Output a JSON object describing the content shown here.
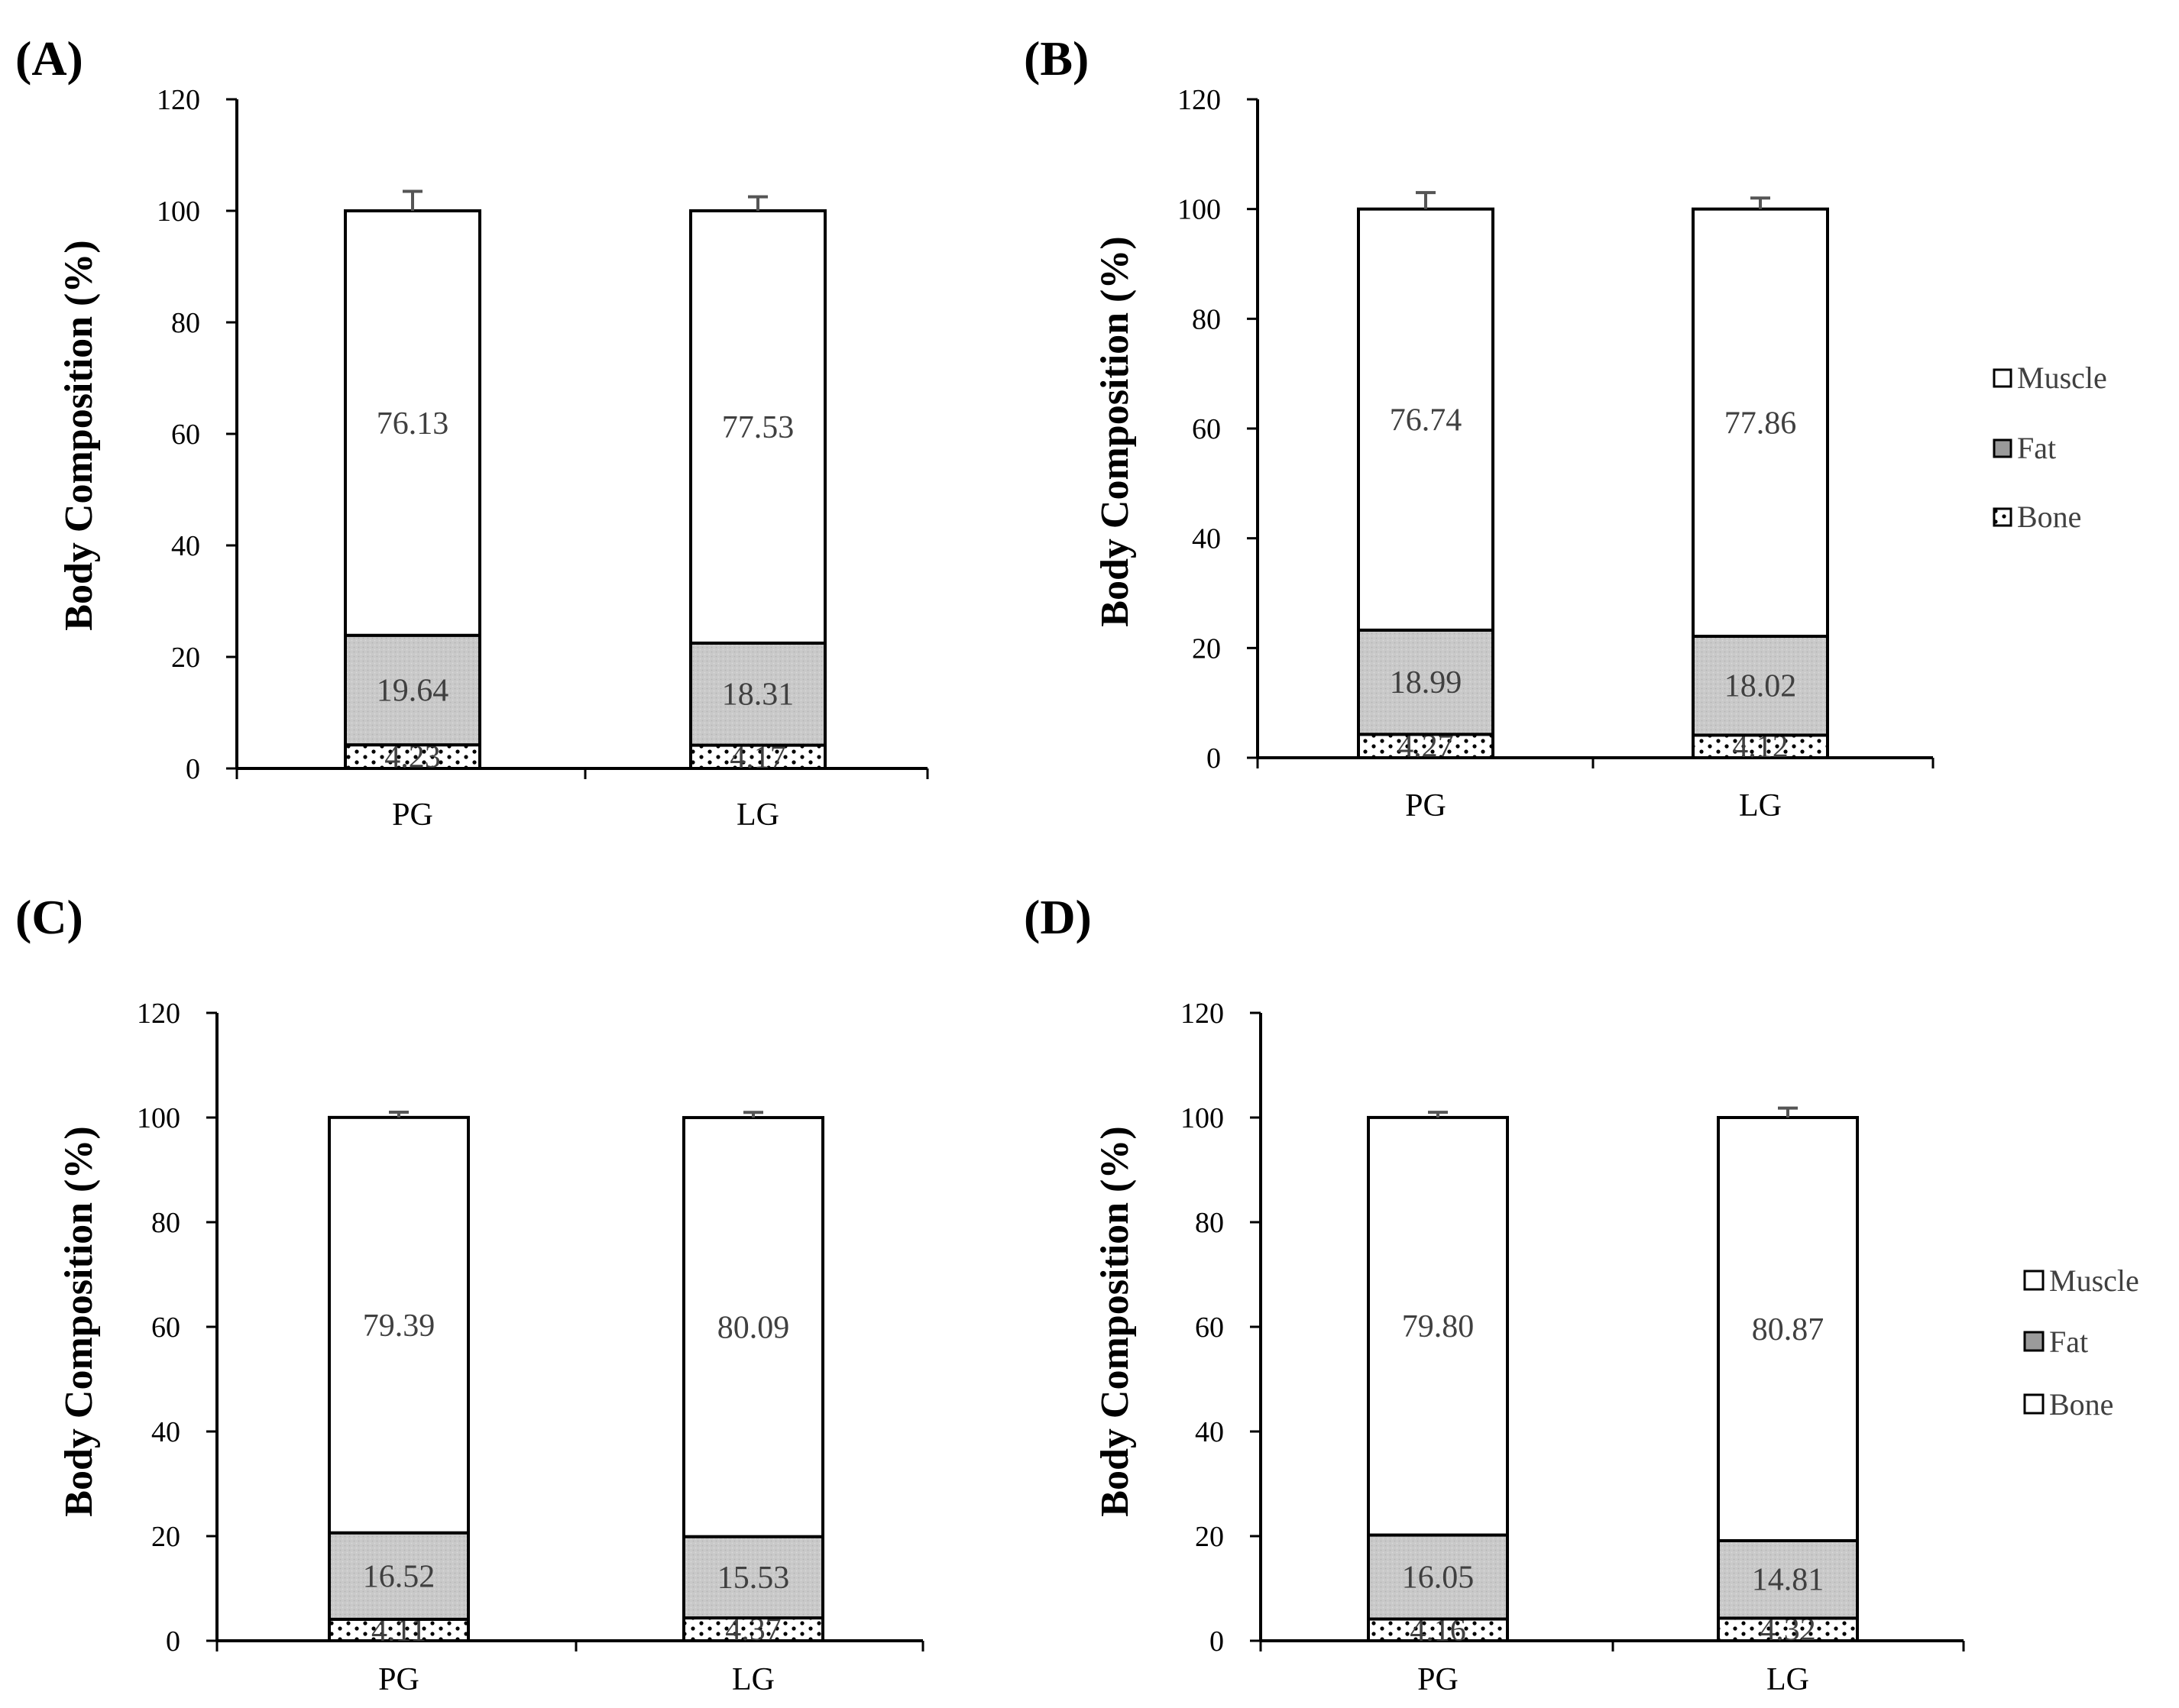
{
  "figure": {
    "legend_top": {
      "items": [
        "Muscle",
        "Fat",
        "Bone"
      ]
    },
    "legend_bottom": {
      "items": [
        "Muscle",
        "Fat",
        "Bone"
      ]
    }
  },
  "chart_data": [
    {
      "type": "bar",
      "stacked": true,
      "panel_label": "(A)",
      "ylabel": "Body Composition (%)",
      "xlabel": "",
      "ylim": [
        0,
        120
      ],
      "yticks": [
        0,
        20,
        40,
        60,
        80,
        100,
        120
      ],
      "categories": [
        "PG",
        "LG"
      ],
      "series": [
        {
          "name": "Bone",
          "values": [
            4.23,
            4.17
          ],
          "labels": [
            "4.23",
            "4.17"
          ],
          "error": [
            0.0,
            0.0
          ]
        },
        {
          "name": "Fat",
          "values": [
            19.64,
            18.31
          ],
          "labels": [
            "19.64",
            "18.31"
          ],
          "error": [
            0.8,
            0.5
          ]
        },
        {
          "name": "Muscle",
          "values": [
            76.13,
            77.53
          ],
          "labels": [
            "76.13",
            "77.53"
          ],
          "error": [
            3.5,
            2.5
          ]
        }
      ],
      "legend": false
    },
    {
      "type": "bar",
      "stacked": true,
      "panel_label": "(B)",
      "ylabel": "Body Composition (%)",
      "xlabel": "",
      "ylim": [
        0,
        120
      ],
      "yticks": [
        0,
        20,
        40,
        60,
        80,
        100,
        120
      ],
      "categories": [
        "PG",
        "LG"
      ],
      "series": [
        {
          "name": "Bone",
          "values": [
            4.27,
            4.12
          ],
          "labels": [
            "4.27",
            "4.12"
          ],
          "error": [
            0.0,
            0.0
          ]
        },
        {
          "name": "Fat",
          "values": [
            18.99,
            18.02
          ],
          "labels": [
            "18.99",
            "18.02"
          ],
          "error": [
            3.0,
            2.0
          ]
        },
        {
          "name": "Muscle",
          "values": [
            76.74,
            77.86
          ],
          "labels": [
            "76.74",
            "77.86"
          ],
          "error": [
            3.0,
            2.0
          ]
        }
      ],
      "legend": true,
      "legend_position": "right"
    },
    {
      "type": "bar",
      "stacked": true,
      "panel_label": "(C)",
      "ylabel": "Body Composition (%)",
      "xlabel": "",
      "ylim": [
        0,
        120
      ],
      "yticks": [
        0,
        20,
        40,
        60,
        80,
        100,
        120
      ],
      "categories": [
        "PG",
        "LG"
      ],
      "series": [
        {
          "name": "Bone",
          "values": [
            4.11,
            4.37
          ],
          "labels": [
            "4.11",
            "4.37"
          ],
          "error": [
            0.5,
            1.0
          ]
        },
        {
          "name": "Fat",
          "values": [
            16.52,
            15.53
          ],
          "labels": [
            "16.52",
            "15.53"
          ],
          "error": [
            1.2,
            1.2
          ]
        },
        {
          "name": "Muscle",
          "values": [
            79.39,
            80.09
          ],
          "labels": [
            "79.39",
            "80.09"
          ],
          "error": [
            1.0,
            1.0
          ]
        }
      ],
      "legend": false
    },
    {
      "type": "bar",
      "stacked": true,
      "panel_label": "(D)",
      "ylabel": "Body Composition (%)",
      "xlabel": "",
      "ylim": [
        0,
        120
      ],
      "yticks": [
        0,
        20,
        40,
        60,
        80,
        100,
        120
      ],
      "categories": [
        "PG",
        "LG"
      ],
      "series": [
        {
          "name": "Bone",
          "values": [
            4.16,
            4.32
          ],
          "labels": [
            "4.16",
            "4.32"
          ],
          "error": [
            0.4,
            0.4
          ]
        },
        {
          "name": "Fat",
          "values": [
            16.05,
            14.81
          ],
          "labels": [
            "16.05",
            "14.81"
          ],
          "error": [
            1.0,
            2.5
          ]
        },
        {
          "name": "Muscle",
          "values": [
            79.8,
            80.87
          ],
          "labels": [
            "79.80",
            "80.87"
          ],
          "error": [
            1.0,
            1.8
          ]
        }
      ],
      "legend": true,
      "legend_position": "right"
    }
  ]
}
